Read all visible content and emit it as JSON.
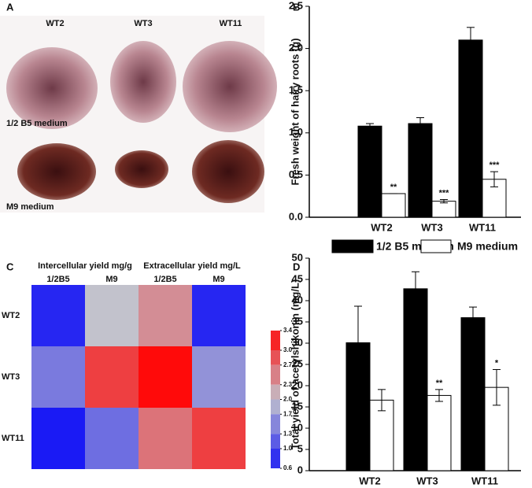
{
  "photo_panel": {
    "label": "A",
    "columns": [
      "WT2",
      "WT3",
      "WT11"
    ],
    "rows": [
      "1/2 B5 medium",
      "M9 medium"
    ]
  },
  "chart_data": [
    {
      "type": "bar",
      "label": "B",
      "ylabel": "Fresh weight of hairy roots (g)",
      "categories": [
        "WT2",
        "WT3",
        "WT11"
      ],
      "series": [
        {
          "name": "1/2 B5 medium",
          "color": "#000000",
          "values": [
            1.08,
            1.11,
            2.1
          ],
          "errors": [
            0.03,
            0.07,
            0.15
          ],
          "annotations": [
            null,
            null,
            null
          ]
        },
        {
          "name": "M9 medium",
          "color": "#ffffff",
          "values": [
            0.28,
            0.19,
            0.45
          ],
          "errors": [
            0.0,
            0.02,
            0.09
          ],
          "annotations": [
            "**",
            "***",
            "***"
          ]
        }
      ],
      "ylim": [
        0,
        2.5
      ],
      "yticks": [
        {
          "value": 0,
          "label": "0.0"
        },
        0.5,
        {
          "value": 1,
          "label": "1.0"
        },
        1.5,
        {
          "value": 2,
          "label": "2.0"
        },
        2.5
      ]
    },
    {
      "type": "heatmap",
      "label": "C",
      "column_groups": [
        "Intercellular yield mg/g",
        "Extracellular yield mg/L"
      ],
      "columns": [
        "1/2B5",
        "M9",
        "1/2B5",
        "M9"
      ],
      "rows": [
        "WT2",
        "WT3",
        "WT11"
      ],
      "values": [
        [
          0.7,
          2.0,
          2.4,
          0.7
        ],
        [
          1.4,
          3.0,
          3.4,
          1.6
        ],
        [
          0.6,
          1.3,
          2.6,
          3.0
        ]
      ],
      "colorscale": [
        "#1a1af5",
        "#c2c2cc",
        "#ff0a0a"
      ],
      "zlim": [
        0.6,
        3.4
      ],
      "zticks": [
        3.4,
        {
          "value": 3,
          "label": "3.0"
        },
        2.7,
        2.3,
        {
          "value": 2,
          "label": "2.0"
        },
        1.7,
        1.3,
        {
          "value": 1,
          "label": "1.0"
        },
        0.6
      ]
    },
    {
      "type": "bar",
      "label": "D",
      "ylabel": "Total yield of acetylshikonin (mg/L)",
      "categories": [
        "WT2",
        "WT3",
        "WT11"
      ],
      "series": [
        {
          "color": "#000000",
          "values": [
            30.1,
            42.8,
            36.0
          ],
          "errors": [
            8.6,
            4.0,
            2.5
          ],
          "annotations": [
            null,
            null,
            null
          ]
        },
        {
          "color": "#ffffff",
          "values": [
            16.6,
            17.7,
            19.6
          ],
          "errors": [
            2.5,
            1.4,
            4.2
          ],
          "annotations": [
            null,
            "**",
            "*"
          ]
        }
      ],
      "ylim": [
        0,
        50
      ],
      "yticks": [
        0,
        5,
        10,
        15,
        20,
        25,
        30,
        35,
        40,
        45,
        50
      ]
    }
  ]
}
